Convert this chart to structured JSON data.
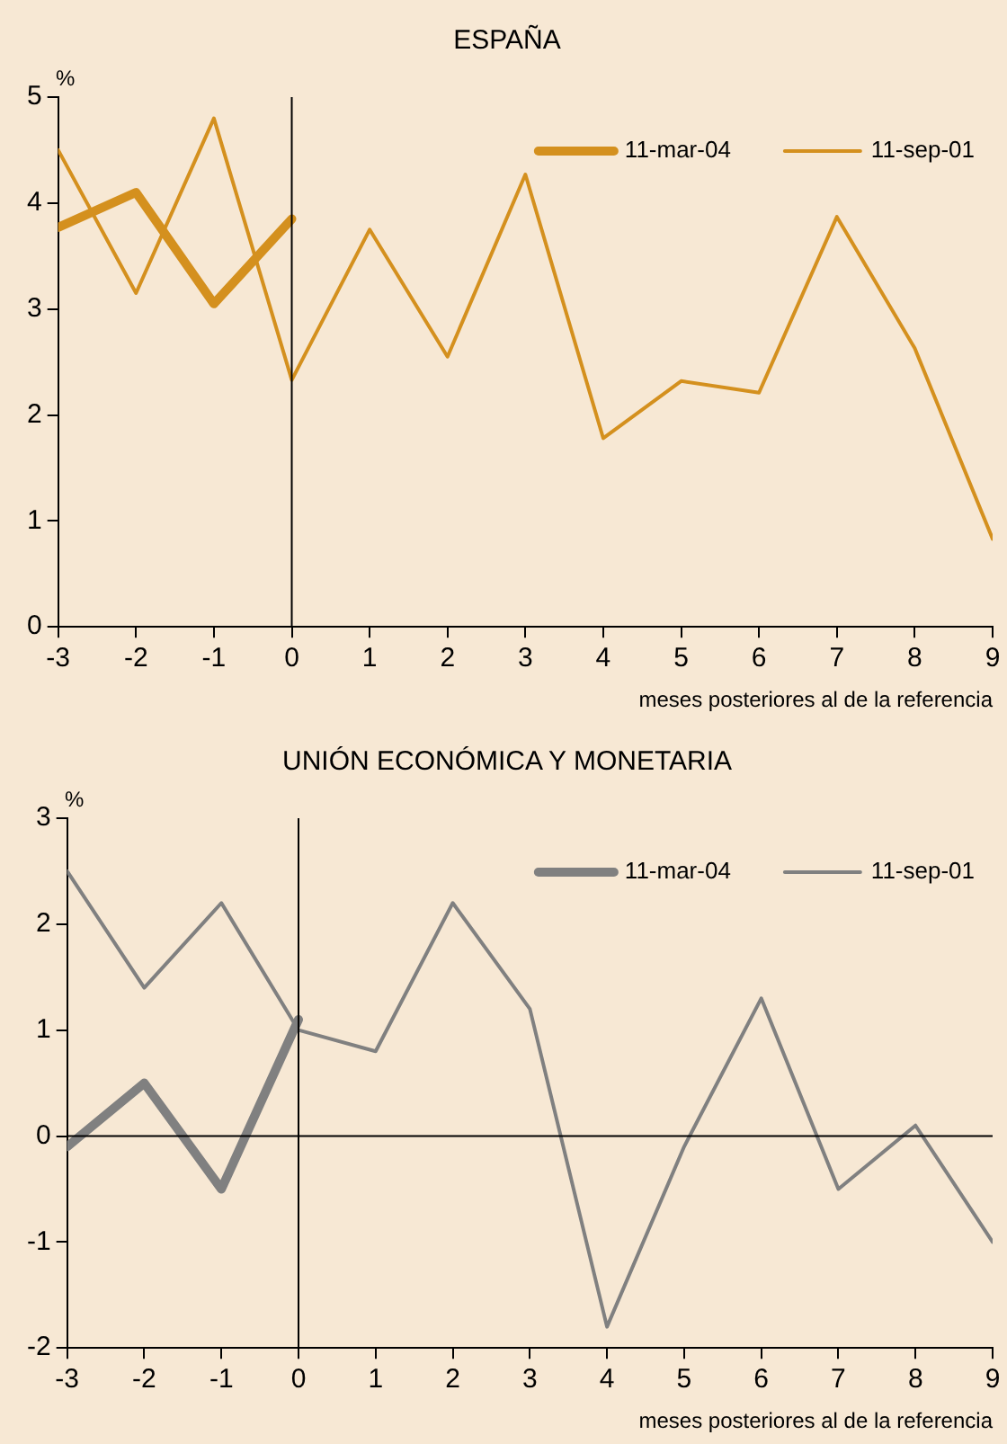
{
  "chart_data": [
    {
      "type": "line",
      "title": "ESPAÑA",
      "ylabel": "%",
      "xlabel": "meses posteriores al de la referencia",
      "x": [
        -3,
        -2,
        -1,
        0,
        1,
        2,
        3,
        4,
        5,
        6,
        7,
        8,
        9
      ],
      "xlim": [
        -3,
        9
      ],
      "xticks": [
        -3,
        -2,
        -1,
        0,
        1,
        2,
        3,
        4,
        5,
        6,
        7,
        8,
        9
      ],
      "ylim": [
        0,
        5
      ],
      "yticks": [
        0,
        1,
        2,
        3,
        4,
        5
      ],
      "grid": false,
      "legend": "top right",
      "marker": "none",
      "ref_lines": [
        {
          "axis": "x",
          "value": 0,
          "color": "#000000"
        }
      ],
      "series": [
        {
          "name": "11-mar-04",
          "color": "#d4901e",
          "values": [
            3.77,
            4.1,
            3.05,
            3.85,
            null,
            null,
            null,
            null,
            null,
            null,
            null,
            null,
            null
          ]
        },
        {
          "name": "11-sep-01",
          "color": "#d4901e",
          "values": [
            4.5,
            3.15,
            4.8,
            2.33,
            3.75,
            2.55,
            4.27,
            1.78,
            2.32,
            2.21,
            3.87,
            2.63,
            0.83
          ]
        }
      ]
    },
    {
      "type": "line",
      "title": "UNIÓN ECONÓMICA Y MONETARIA",
      "ylabel": "%",
      "xlabel": "meses posteriores al de la referencia",
      "x": [
        -3,
        -2,
        -1,
        0,
        1,
        2,
        3,
        4,
        5,
        6,
        7,
        8,
        9
      ],
      "xlim": [
        -3,
        9
      ],
      "xticks": [
        -3,
        -2,
        -1,
        0,
        1,
        2,
        3,
        4,
        5,
        6,
        7,
        8,
        9
      ],
      "ylim": [
        -2,
        3
      ],
      "yticks": [
        -2,
        -1,
        0,
        1,
        2,
        3
      ],
      "grid": false,
      "legend": "top right",
      "marker": "none",
      "ref_lines": [
        {
          "axis": "x",
          "value": 0,
          "color": "#000000"
        },
        {
          "axis": "y",
          "value": 0,
          "color": "#000000"
        }
      ],
      "series": [
        {
          "name": "11-mar-04",
          "color": "#808080",
          "values": [
            -0.1,
            0.5,
            -0.5,
            1.1,
            null,
            null,
            null,
            null,
            null,
            null,
            null,
            null,
            null
          ]
        },
        {
          "name": "11-sep-01",
          "color": "#808080",
          "values": [
            2.5,
            1.4,
            2.2,
            1.0,
            0.8,
            2.2,
            1.2,
            -1.8,
            -0.1,
            1.3,
            -0.5,
            0.1,
            -1.0
          ]
        }
      ]
    }
  ]
}
